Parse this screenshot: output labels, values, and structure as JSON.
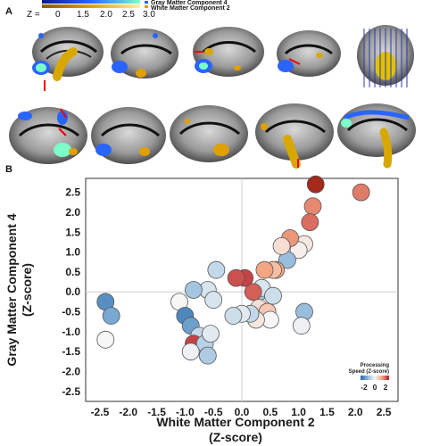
{
  "panel_a": {
    "label": "A",
    "colorbar": {
      "z_prefix": "Z = ",
      "ticks": [
        "0",
        "1.5",
        "2.0",
        "2.5",
        "3.0"
      ],
      "legend": [
        "Gray Matter Component 4",
        "White Matter Component 2"
      ],
      "colors": {
        "gm": "#1f4fd6",
        "wm": "#e8b800"
      }
    },
    "brain_slices": 10
  },
  "panel_b": {
    "label": "B",
    "legend": {
      "title_line1": "Processing",
      "title_line2": "Speed (Z-score)",
      "ticks": [
        "-2",
        "0",
        "2"
      ]
    }
  },
  "chart_data": {
    "type": "scatter",
    "title": "",
    "xlabel_line1": "White Matter Component 2",
    "xlabel_line2": "(Z-score)",
    "ylabel_line1": "Gray Matter Component 4",
    "ylabel_line2": "(Z-score)",
    "xlim": [
      -2.75,
      2.75
    ],
    "ylim": [
      -2.75,
      2.85
    ],
    "x_ticks": [
      -2.5,
      -2.0,
      -1.5,
      -1.0,
      -0.5,
      0.0,
      0.5,
      1.0,
      1.5,
      2.0,
      2.5
    ],
    "y_ticks": [
      2.5,
      2.0,
      1.5,
      1.0,
      0.5,
      0.0,
      -0.5,
      -1.0,
      -1.5,
      -2.0,
      -2.5
    ],
    "x_tick_labels": [
      "-2.5",
      "-2.0",
      "-1.5",
      "-1.0",
      "-0.5",
      "0.0",
      "0.5",
      "1.0",
      "1.5",
      "2.0",
      "2.5"
    ],
    "y_tick_labels": [
      "2.5",
      "2.0",
      "1.5",
      "1.0",
      "0.5",
      "0.0",
      "-0.5",
      "-1.0",
      "-1.5",
      "-2.0",
      "-2.5"
    ],
    "color_variable": "Processing Speed (Z-score)",
    "color_range": [
      -2,
      2
    ],
    "points": [
      {
        "x": 1.3,
        "y": 2.7,
        "c": 2.3
      },
      {
        "x": 2.1,
        "y": 2.5,
        "c": 1.3
      },
      {
        "x": 1.25,
        "y": 2.15,
        "c": 1.2
      },
      {
        "x": 1.2,
        "y": 1.75,
        "c": 1.4
      },
      {
        "x": 1.1,
        "y": 1.2,
        "c": 0.2
      },
      {
        "x": 1.0,
        "y": 1.05,
        "c": 0.1
      },
      {
        "x": 0.85,
        "y": 1.35,
        "c": 1.1
      },
      {
        "x": 0.8,
        "y": 0.8,
        "c": -0.9
      },
      {
        "x": 0.7,
        "y": 1.15,
        "c": 0.3
      },
      {
        "x": 0.6,
        "y": 0.55,
        "c": 1.0
      },
      {
        "x": 0.55,
        "y": 0.55,
        "c": 0.7
      },
      {
        "x": 0.4,
        "y": 0.55,
        "c": 1.0
      },
      {
        "x": 0.3,
        "y": 0.0,
        "c": -0.8
      },
      {
        "x": 0.35,
        "y": 0.1,
        "c": -0.3
      },
      {
        "x": 0.2,
        "y": 0.0,
        "c": 1.5
      },
      {
        "x": 0.05,
        "y": 0.35,
        "c": 1.7
      },
      {
        "x": -0.1,
        "y": 0.35,
        "c": 1.6
      },
      {
        "x": 0.3,
        "y": -0.4,
        "c": 0.3
      },
      {
        "x": 0.45,
        "y": -0.5,
        "c": 0.6
      },
      {
        "x": 0.55,
        "y": -0.1,
        "c": -0.4
      },
      {
        "x": 0.5,
        "y": -0.7,
        "c": 0.0
      },
      {
        "x": 0.25,
        "y": -0.7,
        "c": 0.2
      },
      {
        "x": 0.15,
        "y": -0.55,
        "c": -0.5
      },
      {
        "x": 0.0,
        "y": -0.55,
        "c": -0.2
      },
      {
        "x": -0.15,
        "y": -0.6,
        "c": -0.4
      },
      {
        "x": 1.1,
        "y": -0.5,
        "c": -0.9
      },
      {
        "x": 1.05,
        "y": -0.85,
        "c": -0.1
      },
      {
        "x": -0.45,
        "y": 0.55,
        "c": -0.5
      },
      {
        "x": -0.6,
        "y": 0.05,
        "c": -0.3
      },
      {
        "x": -0.85,
        "y": 0.05,
        "c": -0.8
      },
      {
        "x": -0.5,
        "y": -0.2,
        "c": -0.3
      },
      {
        "x": -1.1,
        "y": -0.25,
        "c": 0.0
      },
      {
        "x": -1.0,
        "y": -0.6,
        "c": -1.6
      },
      {
        "x": -0.9,
        "y": -0.85,
        "c": -1.3
      },
      {
        "x": -0.75,
        "y": -1.1,
        "c": -0.5
      },
      {
        "x": -0.85,
        "y": -1.3,
        "c": 1.7
      },
      {
        "x": -0.65,
        "y": -1.3,
        "c": -0.6
      },
      {
        "x": -0.55,
        "y": -1.05,
        "c": -0.2
      },
      {
        "x": -0.6,
        "y": -1.6,
        "c": -0.7
      },
      {
        "x": -0.9,
        "y": -1.5,
        "c": -0.1
      },
      {
        "x": -2.4,
        "y": -0.25,
        "c": -1.5
      },
      {
        "x": -2.3,
        "y": -0.6,
        "c": -1.2
      },
      {
        "x": -2.4,
        "y": -1.2,
        "c": 0.0
      }
    ]
  }
}
